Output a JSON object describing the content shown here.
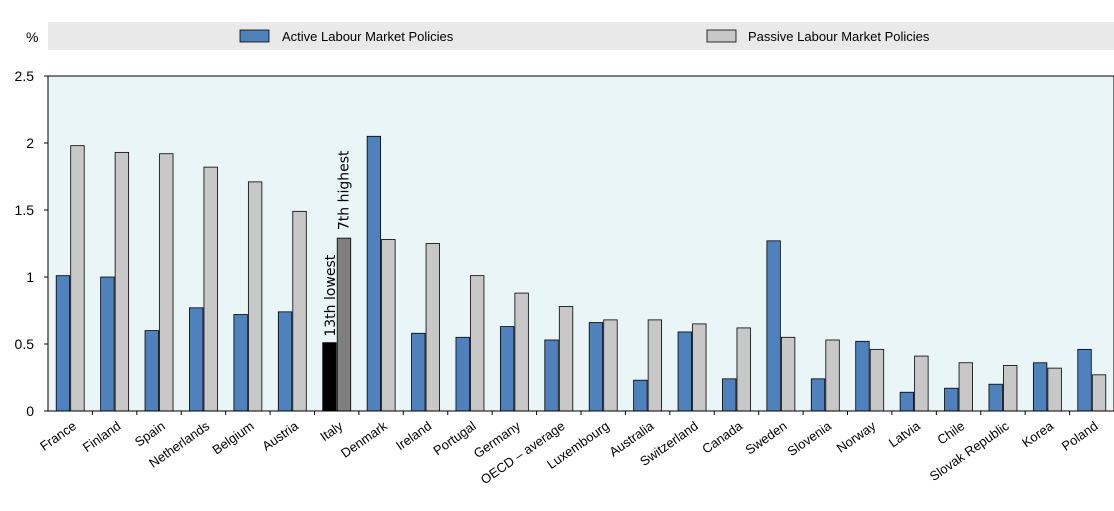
{
  "chart_data": {
    "type": "bar",
    "ylabel": "%",
    "ylim": [
      0,
      2.5
    ],
    "yticks": [
      "0",
      "0.5",
      "1",
      "1.5",
      "2",
      "2.5"
    ],
    "legend_position": "top",
    "grid": false,
    "categories": [
      "France",
      "Finland",
      "Spain",
      "Netherlands",
      "Belgium",
      "Austria",
      "Italy",
      "Denmark",
      "Ireland",
      "Portugal",
      "Germany",
      "OECD - average",
      "Luxembourg",
      "Australia",
      "Switzerland",
      "Canada",
      "Sweden",
      "Slovenia",
      "Norway",
      "Latvia",
      "Chile",
      "Slovak Republic",
      "Korea",
      "Poland"
    ],
    "series": [
      {
        "name": "Active Labour Market Policies",
        "color": "#4f81bd",
        "values": [
          1.01,
          1.0,
          0.6,
          0.77,
          0.72,
          0.74,
          0.51,
          2.05,
          0.58,
          0.55,
          0.63,
          0.53,
          0.66,
          0.23,
          0.59,
          0.24,
          1.27,
          0.24,
          0.52,
          0.14,
          0.17,
          0.2,
          0.36,
          0.46
        ]
      },
      {
        "name": "Passive Labour Market Policies",
        "color": "#c8c8c8",
        "values": [
          1.98,
          1.93,
          1.92,
          1.82,
          1.71,
          1.49,
          1.29,
          1.28,
          1.25,
          1.01,
          0.88,
          0.78,
          0.68,
          0.68,
          0.65,
          0.62,
          0.55,
          0.53,
          0.46,
          0.41,
          0.36,
          0.34,
          0.32,
          0.27
        ]
      }
    ],
    "highlight": {
      "category": "Italy",
      "active_color": "#000000",
      "passive_color": "#7f7f7f"
    },
    "annotations": [
      "13th lowest",
      "7th highest"
    ]
  }
}
